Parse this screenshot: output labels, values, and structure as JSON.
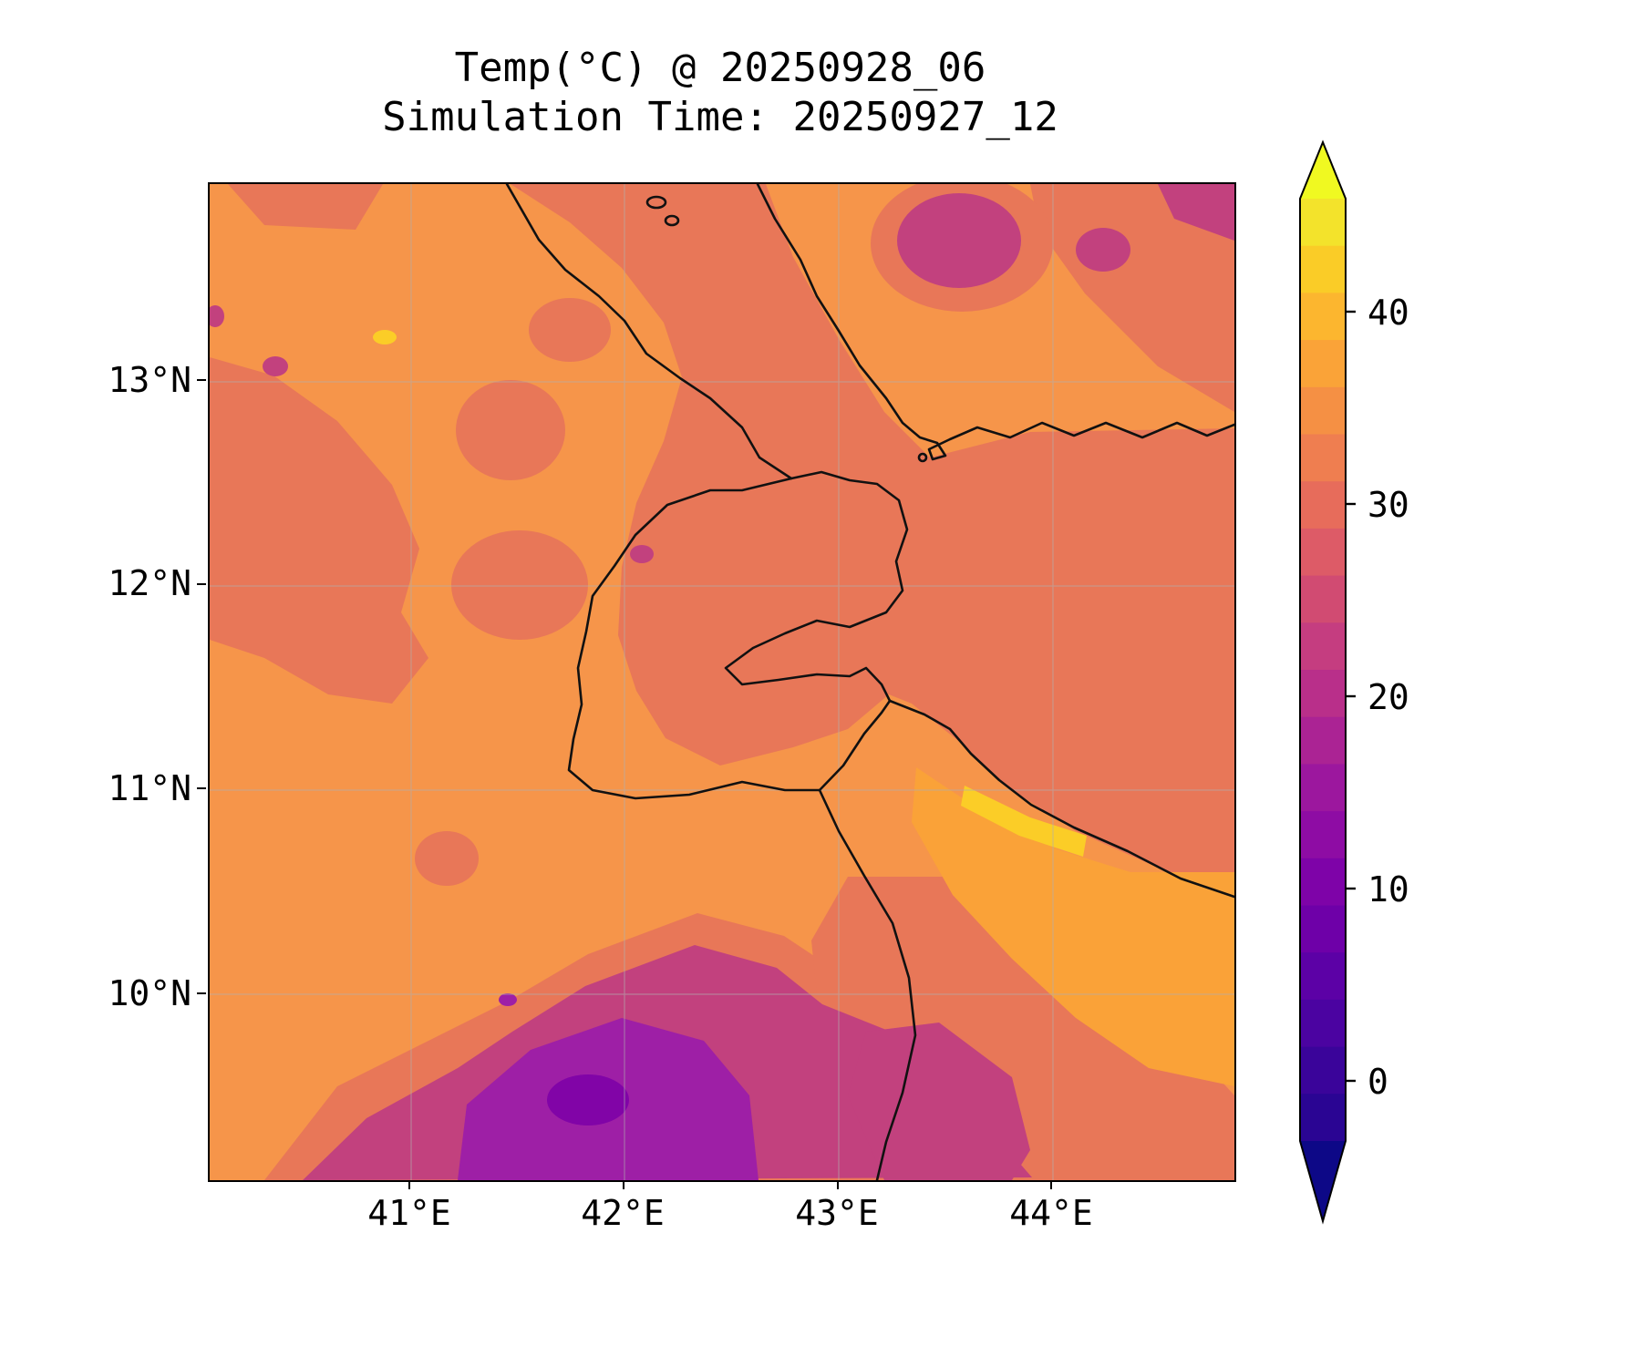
{
  "figure": {
    "title_line1": "Temp(°C) @ 20250928_06",
    "title_line2": "Simulation Time: 20250927_12"
  },
  "axes": {
    "x_ticks": [
      "41°E",
      "42°E",
      "43°E",
      "44°E"
    ],
    "y_ticks": [
      "13°N",
      "12°N",
      "11°N",
      "10°N"
    ]
  },
  "colorbar": {
    "ticks": [
      "40",
      "30",
      "20",
      "10",
      "0"
    ],
    "over_color": "#F0F921",
    "under_color": "#0D0887",
    "segments_top_to_bottom": [
      "#F3E32B",
      "#FACC27",
      "#FCB62F",
      "#FAA338",
      "#F59044",
      "#EF7E50",
      "#E76C5B",
      "#DD5B67",
      "#D14B72",
      "#C53D80",
      "#B92F8A",
      "#AB2394",
      "#9C179E",
      "#8E0CA4",
      "#7E03A8",
      "#6E00A8",
      "#5C01A6",
      "#4B03A1",
      "#3A049A",
      "#2A0593"
    ]
  },
  "palette": {
    "base_orange": "#F6954A",
    "light_orange": "#FAA238",
    "salmon": "#E87758",
    "magenta": "#C2417E",
    "purple": "#9E1FA6",
    "deep_purple": "#8104A7",
    "yellow": "#FBCD27",
    "coastline": "#111111",
    "gridline": "#b0b0b0"
  },
  "chart_data": {
    "type": "heatmap",
    "title": "Temp(°C) @ 20250928_06",
    "subtitle": "Simulation Time: 20250927_12",
    "xlabel": "",
    "ylabel": "",
    "units": "°C",
    "colormap": "plasma",
    "grid": true,
    "legend_position": "right-colorbar",
    "x_ticks": [
      "41°E",
      "42°E",
      "43°E",
      "44°E"
    ],
    "y_ticks": [
      "13°N",
      "12°N",
      "11°N",
      "10°N"
    ],
    "xlim": [
      40.05,
      44.85
    ],
    "ylim": [
      9.1,
      13.95
    ],
    "colorbar_ticks": [
      0,
      10,
      20,
      30,
      40
    ],
    "colorbar_range": [
      -5,
      45
    ],
    "lon": [
      40.5,
      41.0,
      41.5,
      42.0,
      42.5,
      43.0,
      43.5,
      44.0,
      44.5
    ],
    "lat": [
      13.5,
      13.0,
      12.5,
      12.0,
      11.5,
      11.0,
      10.5,
      10.0,
      9.5
    ],
    "values": [
      [
        33,
        33,
        29,
        28,
        28,
        33,
        33,
        22,
        27
      ],
      [
        33,
        36,
        33,
        30,
        28,
        28,
        33,
        33,
        27
      ],
      [
        33,
        33,
        33,
        30,
        28,
        28,
        28,
        28,
        28
      ],
      [
        33,
        33,
        33,
        33,
        29,
        28,
        28,
        28,
        28
      ],
      [
        33,
        33,
        33,
        29,
        28,
        23,
        28,
        28,
        28
      ],
      [
        33,
        33,
        33,
        33,
        29,
        29,
        28,
        28,
        28
      ],
      [
        33,
        33,
        33,
        33,
        33,
        30,
        33,
        38,
        33
      ],
      [
        33,
        33,
        33,
        30,
        33,
        30,
        28,
        30,
        28
      ],
      [
        33,
        30,
        24,
        17,
        20,
        24,
        22,
        28,
        28
      ]
    ]
  }
}
